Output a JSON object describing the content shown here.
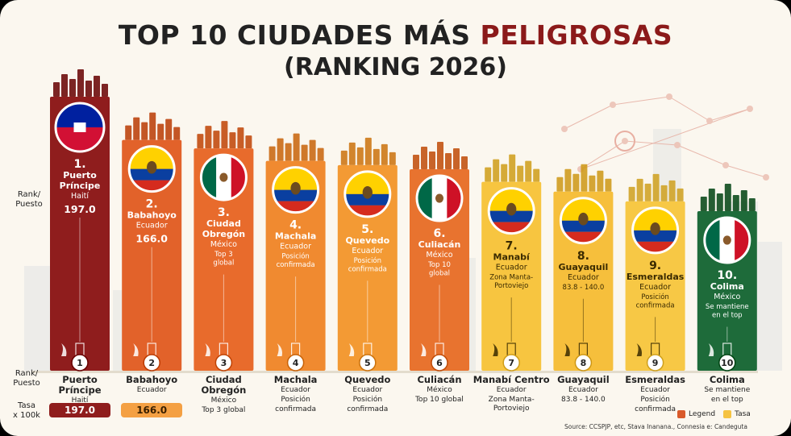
{
  "title_parts": [
    "TOP 10 CIUDADES MÁS ",
    "PELIGROSAS"
  ],
  "subtitle": "(RANKING 2026)",
  "rank_label": [
    "Rank/",
    "Puesto"
  ],
  "rank_label_bottom": [
    "Rank/",
    "Puesto"
  ],
  "rate_label": [
    "Tasa",
    "x 100k"
  ],
  "legend": {
    "legend_label": "Legend",
    "rate_label": "Tasa",
    "legend_color": "#d95a2b",
    "rate_color": "#f5c342"
  },
  "source": "Source: CCSPJP, etc, Stava Inanana., Connesia e: Candeguta",
  "chart_data": {
    "type": "bar",
    "title": "TOP 10 CIUDADES MÁS PELIGROSAS (RANKING 2026)",
    "ylabel": "Tasa x 100k",
    "ylim": [
      0,
      210
    ],
    "categories": [
      "Puerto Príncipe",
      "Babahoyo",
      "Ciudad Obregón",
      "Machala",
      "Quevedo",
      "Culiacán",
      "Manabí",
      "Guayaquil",
      "Esmeraldas",
      "Colima"
    ],
    "values": [
      197.0,
      166.0,
      160,
      151,
      148,
      145,
      136,
      129,
      122,
      115
    ],
    "bars": [
      {
        "rank": "1",
        "card_lines": [
          "Puerto",
          "Príncipe"
        ],
        "country": "Haití",
        "note": [
          "197.0"
        ],
        "color": "#8f1d1d",
        "flag": "haiti",
        "bottom_city": [
          "Puerto Príncipe"
        ],
        "bottom_sub": [
          "Haití"
        ],
        "pill": "197.0",
        "pill_color": "#8f1d1d"
      },
      {
        "rank": "2",
        "card_lines": [
          "Babahoyo"
        ],
        "country": "Ecuador",
        "note": [
          "166.0"
        ],
        "color": "#e2622a",
        "flag": "ecuador",
        "bottom_city": [
          "Babahoyo"
        ],
        "bottom_sub": [
          "Ecuador"
        ],
        "pill": "166.0",
        "pill_color": "#f4a043"
      },
      {
        "rank": "3",
        "card_lines": [
          "Ciudad",
          "Obregón"
        ],
        "country": "México",
        "note": [
          "Top 3",
          "global"
        ],
        "color": "#e86b2c",
        "flag": "mexico",
        "bottom_city": [
          "Ciudad",
          "Obregón"
        ],
        "bottom_sub": [
          "México",
          "Top 3 global"
        ],
        "pill": "",
        "pill_color": ""
      },
      {
        "rank": "4",
        "card_lines": [
          "Machala"
        ],
        "country": "Ecuador",
        "note": [
          "Posición",
          "confirmada"
        ],
        "color": "#f08a30",
        "flag": "ecuador",
        "bottom_city": [
          "Machala"
        ],
        "bottom_sub": [
          "Ecuador",
          "Posición",
          "confirmada"
        ],
        "pill": "",
        "pill_color": ""
      },
      {
        "rank": "5",
        "card_lines": [
          "Quevedo"
        ],
        "country": "Ecuador",
        "note": [
          "Posición",
          "confirmada"
        ],
        "color": "#f39a34",
        "flag": "ecuador",
        "bottom_city": [
          "Quevedo"
        ],
        "bottom_sub": [
          "Ecuador",
          "Posición",
          "confirmada"
        ],
        "pill": "",
        "pill_color": ""
      },
      {
        "rank": "6",
        "card_lines": [
          "Culiacán"
        ],
        "country": "México",
        "note": [
          "Top 10",
          "global"
        ],
        "color": "#e8732f",
        "flag": "mexico",
        "bottom_city": [
          "Culiacán"
        ],
        "bottom_sub": [
          "México",
          "Top 10 global"
        ],
        "pill": "",
        "pill_color": ""
      },
      {
        "rank": "7",
        "card_lines": [
          "Manabí"
        ],
        "country": "Ecuador",
        "note": [
          "Zona Manta-",
          "Portoviejo"
        ],
        "color": "#f7c540",
        "flag": "ecuador",
        "bottom_city": [
          "Manabí Centro"
        ],
        "bottom_sub": [
          "Ecuador",
          "Zona Manta-Portoviejo"
        ],
        "pill": "",
        "pill_color": ""
      },
      {
        "rank": "8",
        "card_lines": [
          "Guayaquil"
        ],
        "country": "Ecuador",
        "note": [
          "83.8 - 140.0"
        ],
        "color": "#f6bf3c",
        "flag": "ecuador",
        "bottom_city": [
          "Guayaquil"
        ],
        "bottom_sub": [
          "Ecuador",
          "83.8 - 140.0"
        ],
        "pill": "",
        "pill_color": ""
      },
      {
        "rank": "9",
        "card_lines": [
          "Esmeraldas"
        ],
        "country": "Ecuador",
        "note": [
          "Posición",
          "confirmada"
        ],
        "color": "#f7c845",
        "flag": "ecuador",
        "bottom_city": [
          "Esmeraldas"
        ],
        "bottom_sub": [
          "Ecuador",
          "Posición",
          "confirmada"
        ],
        "pill": "",
        "pill_color": ""
      },
      {
        "rank": "10",
        "card_lines": [
          "Colima"
        ],
        "country": "México",
        "note": [
          "Se mantiene",
          "en el top"
        ],
        "color": "#1e6b3a",
        "flag": "mexico",
        "bottom_city": [
          "Colima"
        ],
        "bottom_sub": [
          "Se mantiene",
          "en el top"
        ],
        "pill": "",
        "pill_color": ""
      }
    ]
  }
}
